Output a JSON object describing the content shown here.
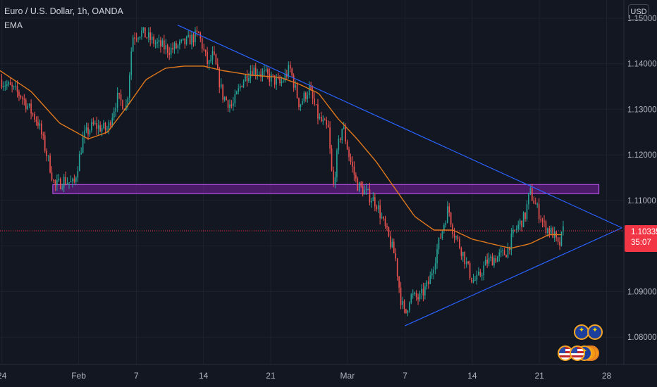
{
  "header": {
    "title": "Euro / U.S. Dollar, 1h, OANDA",
    "indicator": "EMA",
    "currency": "USD"
  },
  "current_price": {
    "value": 1.10335,
    "label": "1.10335",
    "countdown": "35:07",
    "color": "#f23645"
  },
  "colors": {
    "background": "#131722",
    "grid": "#1e222d",
    "bull": "#26a69a",
    "bear": "#ef5350",
    "ema": "#e0781c",
    "trendline": "#2962ff",
    "zone_fill": "#7b1fa2",
    "zone_border": "#c65cff",
    "axis_text": "#b2b5be"
  },
  "events_icons": [
    "us-flag-icon",
    "eu-flag-icon",
    "us-flag-icon",
    "eu-flag-icon",
    "orange-event-icon",
    "orange-event-icon"
  ],
  "chart_data": {
    "type": "candlestick",
    "title": "Euro / U.S. Dollar, 1h, OANDA",
    "ylim": [
      1.074,
      1.154
    ],
    "y_ticks": [
      1.15,
      1.14,
      1.13,
      1.12,
      1.11,
      1.1,
      1.09,
      1.08
    ],
    "y_tick_labels": [
      "1.15000",
      "1.14000",
      "1.13000",
      "1.12000",
      "1.11000",
      "1.10000",
      "1.09000",
      "1.08000"
    ],
    "x_ticks": [
      {
        "label": "24",
        "day": -1
      },
      {
        "label": "Feb",
        "day": 7
      },
      {
        "label": "7",
        "day": 13
      },
      {
        "label": "14",
        "day": 20
      },
      {
        "label": "21",
        "day": 27
      },
      {
        "label": "Mar",
        "day": 35
      },
      {
        "label": "7",
        "day": 41
      },
      {
        "label": "14",
        "day": 48
      },
      {
        "label": "21",
        "day": 55
      },
      {
        "label": "28",
        "day": 62
      }
    ],
    "xlim_days": [
      -1.2,
      63.8
    ],
    "anchors": [
      [
        -1.2,
        1.1365
      ],
      [
        1.0,
        1.133
      ],
      [
        2.8,
        1.127
      ],
      [
        4.0,
        1.1175
      ],
      [
        4.5,
        1.113
      ],
      [
        5.5,
        1.1145
      ],
      [
        6.5,
        1.1135
      ],
      [
        7.5,
        1.124
      ],
      [
        8.5,
        1.1265
      ],
      [
        10.0,
        1.1255
      ],
      [
        11.0,
        1.1325
      ],
      [
        12.0,
        1.1305
      ],
      [
        12.6,
        1.146
      ],
      [
        13.5,
        1.147
      ],
      [
        15.0,
        1.1445
      ],
      [
        16.5,
        1.143
      ],
      [
        18.0,
        1.1445
      ],
      [
        19.5,
        1.1465
      ],
      [
        20.5,
        1.1395
      ],
      [
        21.0,
        1.142
      ],
      [
        22.0,
        1.133
      ],
      [
        23.0,
        1.1305
      ],
      [
        24.0,
        1.136
      ],
      [
        25.0,
        1.139
      ],
      [
        26.5,
        1.1375
      ],
      [
        28.0,
        1.1355
      ],
      [
        29.0,
        1.139
      ],
      [
        30.0,
        1.131
      ],
      [
        31.0,
        1.1345
      ],
      [
        32.0,
        1.128
      ],
      [
        33.0,
        1.1255
      ],
      [
        33.5,
        1.1125
      ],
      [
        34.0,
        1.1215
      ],
      [
        34.5,
        1.1265
      ],
      [
        35.2,
        1.1195
      ],
      [
        36.0,
        1.1135
      ],
      [
        37.0,
        1.1115
      ],
      [
        38.0,
        1.1095
      ],
      [
        39.0,
        1.1035
      ],
      [
        40.0,
        1.0975
      ],
      [
        40.5,
        1.089
      ],
      [
        41.0,
        1.0845
      ],
      [
        41.5,
        1.089
      ],
      [
        42.5,
        1.0885
      ],
      [
        43.5,
        1.092
      ],
      [
        44.5,
        1.1005
      ],
      [
        45.5,
        1.1085
      ],
      [
        46.0,
        1.1035
      ],
      [
        47.0,
        1.0985
      ],
      [
        48.0,
        1.0925
      ],
      [
        48.5,
        1.0925
      ],
      [
        49.5,
        1.0965
      ],
      [
        50.5,
        1.0975
      ],
      [
        51.5,
        1.0985
      ],
      [
        52.5,
        1.1035
      ],
      [
        53.5,
        1.1065
      ],
      [
        54.0,
        1.112
      ],
      [
        54.7,
        1.1085
      ],
      [
        55.5,
        1.1045
      ],
      [
        56.5,
        1.1025
      ],
      [
        57.0,
        1.0995
      ],
      [
        57.5,
        1.1035
      ]
    ],
    "ema_anchors": [
      [
        -1.2,
        1.1385
      ],
      [
        2.0,
        1.134
      ],
      [
        5.0,
        1.127
      ],
      [
        8.0,
        1.1235
      ],
      [
        10.0,
        1.125
      ],
      [
        12.0,
        1.1305
      ],
      [
        14.0,
        1.1365
      ],
      [
        16.0,
        1.139
      ],
      [
        18.0,
        1.1395
      ],
      [
        20.0,
        1.1395
      ],
      [
        22.0,
        1.1385
      ],
      [
        25.0,
        1.1375
      ],
      [
        28.0,
        1.137
      ],
      [
        30.0,
        1.1355
      ],
      [
        32.0,
        1.1335
      ],
      [
        34.0,
        1.128
      ],
      [
        36.0,
        1.1235
      ],
      [
        38.0,
        1.1185
      ],
      [
        40.0,
        1.1125
      ],
      [
        42.0,
        1.1065
      ],
      [
        44.0,
        1.1035
      ],
      [
        46.0,
        1.1035
      ],
      [
        48.0,
        1.1015
      ],
      [
        50.0,
        1.1005
      ],
      [
        52.0,
        1.0995
      ],
      [
        54.0,
        1.1005
      ],
      [
        56.0,
        1.1025
      ],
      [
        57.5,
        1.1025
      ]
    ],
    "zone": {
      "day_start": 4.3,
      "day_end": 61.2,
      "y_low": 1.1115,
      "y_high": 1.1135
    },
    "trendlines": [
      {
        "name": "resistance",
        "from": [
          17.3,
          1.1485
        ],
        "to": [
          63.6,
          1.104
        ]
      },
      {
        "name": "support",
        "from": [
          41.0,
          1.0825
        ],
        "to": [
          63.6,
          1.104
        ]
      }
    ],
    "grid": true,
    "legend": "top-left"
  }
}
